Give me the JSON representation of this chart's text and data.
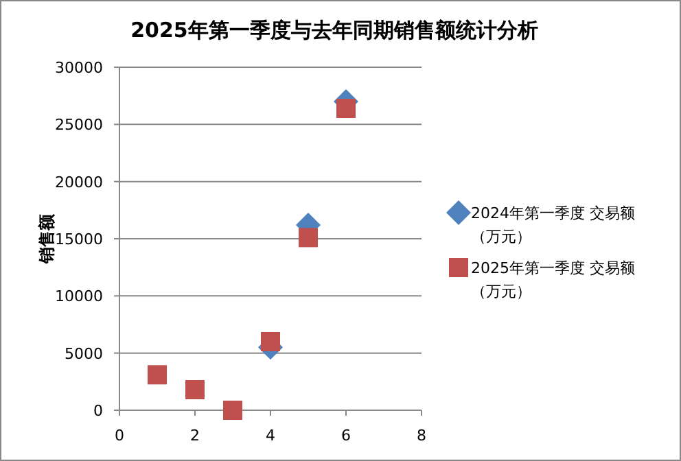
{
  "chart_data": {
    "type": "scatter",
    "title": "2025年第一季度与去年同期销售额统计分析",
    "ylabel": "销售额",
    "x": [
      1,
      2,
      3,
      4,
      5,
      6
    ],
    "series": [
      {
        "name": "2024年第一季度 交易额（万元）",
        "color": "#4f81bd",
        "marker": "diamond",
        "values": [
          null,
          null,
          null,
          5500,
          16200,
          27000
        ]
      },
      {
        "name": "2025年第一季度 交易额（万元）",
        "color": "#c0504d",
        "marker": "square",
        "values": [
          3100,
          1800,
          0,
          6000,
          15100,
          26400
        ]
      }
    ],
    "xlim": [
      0,
      8
    ],
    "xticks": [
      0,
      2,
      4,
      6,
      8
    ],
    "ylim": [
      0,
      30000
    ],
    "yticks": [
      0,
      5000,
      10000,
      15000,
      20000,
      25000,
      30000
    ],
    "grid": "y",
    "legend": "right"
  }
}
